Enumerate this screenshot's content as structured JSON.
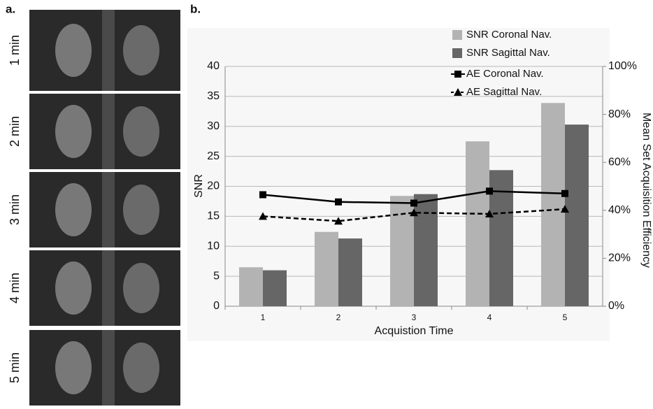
{
  "panel_a": {
    "label": "a.",
    "images": [
      {
        "label": "1 min"
      },
      {
        "label": "2 min"
      },
      {
        "label": "3 min"
      },
      {
        "label": "4 min"
      },
      {
        "label": "5 min"
      }
    ]
  },
  "panel_b_label": "b.",
  "chart_data": {
    "type": "bar",
    "x_label": "Acquistion Time",
    "y_label": "SNR",
    "y2_label": "Mean Set Acquisition Efficiency",
    "categories": [
      "1",
      "2",
      "3",
      "4",
      "5"
    ],
    "ylim": [
      0,
      40
    ],
    "yticks": [
      0,
      5,
      10,
      15,
      20,
      25,
      30,
      35,
      40
    ],
    "y2lim": [
      0,
      100
    ],
    "y2ticks": [
      {
        "value": 0,
        "label": "0%"
      },
      {
        "value": 20,
        "label": "20%"
      },
      {
        "value": 40,
        "label": "40%"
      },
      {
        "value": 60,
        "label": "60%"
      },
      {
        "value": 80,
        "label": "80%"
      },
      {
        "value": 100,
        "label": "100%"
      }
    ],
    "grid": true,
    "series": [
      {
        "name": "SNR Coronal Nav.",
        "color": "#b3b3b3",
        "values": [
          6.5,
          12.4,
          18.4,
          27.5,
          33.9
        ]
      },
      {
        "name": "SNR Sagittal Nav.",
        "color": "#666666",
        "values": [
          6.0,
          11.3,
          18.7,
          22.7,
          30.3
        ]
      },
      {
        "name": "AE Coronal Nav.",
        "type": "line",
        "axis": "y2",
        "color": "#000000",
        "line_style": "solid",
        "marker": "square",
        "values": [
          46.5,
          43.5,
          43,
          48,
          47
        ]
      },
      {
        "name": "AE Sagittal Nav.",
        "type": "line",
        "axis": "y2",
        "color": "#000000",
        "line_style": "dashed",
        "marker": "triangle",
        "values": [
          37.5,
          35.5,
          39,
          38.5,
          40.5
        ]
      }
    ]
  }
}
